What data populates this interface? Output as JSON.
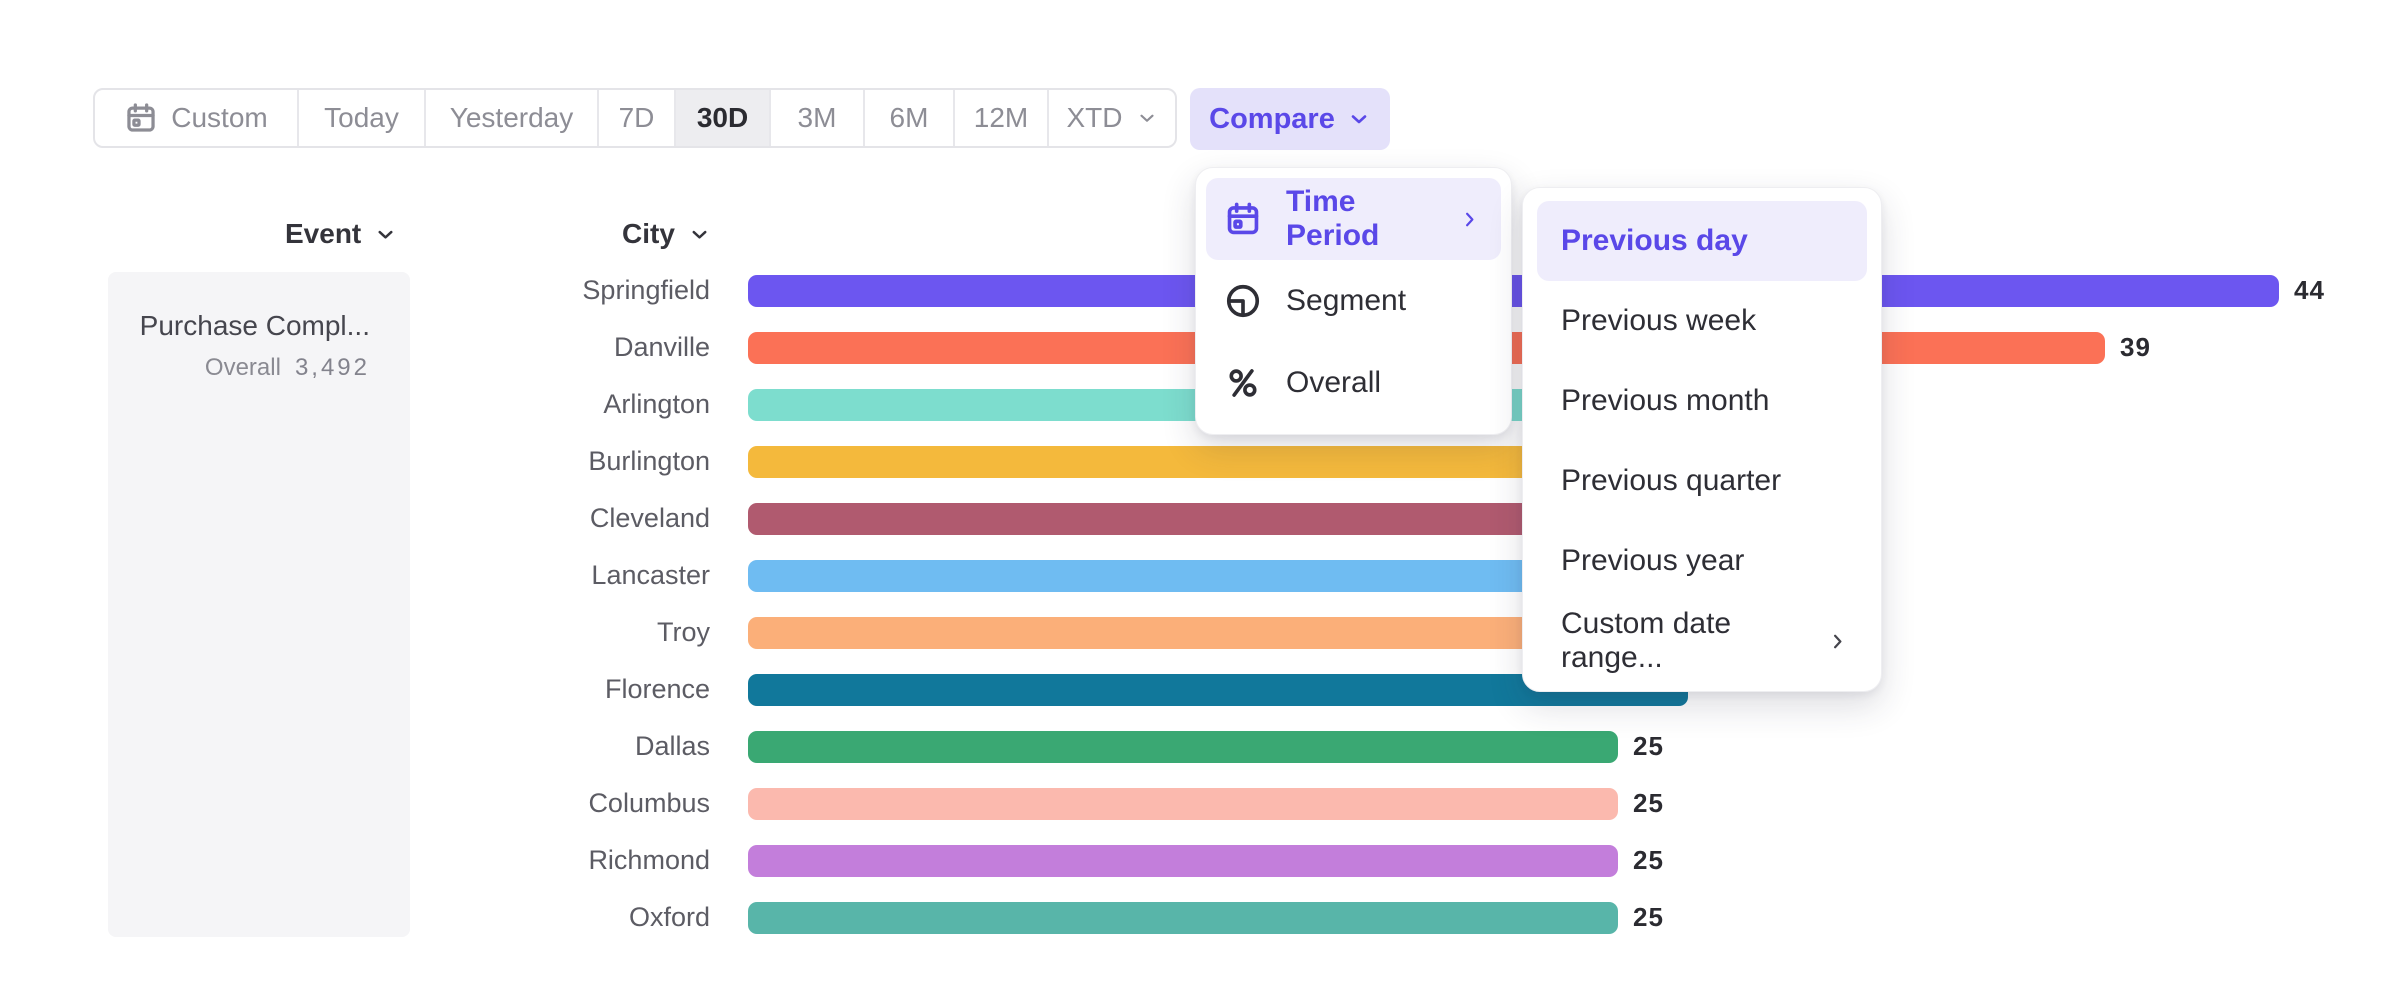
{
  "toolbar": {
    "items": [
      {
        "label": "Custom",
        "icon": "calendar-icon",
        "chevron": false,
        "selected": false
      },
      {
        "label": "Today",
        "icon": null,
        "chevron": false,
        "selected": false
      },
      {
        "label": "Yesterday",
        "icon": null,
        "chevron": false,
        "selected": false
      },
      {
        "label": "7D",
        "icon": null,
        "chevron": false,
        "selected": false
      },
      {
        "label": "30D",
        "icon": null,
        "chevron": false,
        "selected": true
      },
      {
        "label": "3M",
        "icon": null,
        "chevron": false,
        "selected": false
      },
      {
        "label": "6M",
        "icon": null,
        "chevron": false,
        "selected": false
      },
      {
        "label": "12M",
        "icon": null,
        "chevron": false,
        "selected": false
      },
      {
        "label": "XTD",
        "icon": null,
        "chevron": true,
        "selected": false
      }
    ]
  },
  "compare_button": {
    "label": "Compare"
  },
  "column_headers": {
    "event": "Event",
    "city": "City"
  },
  "event_card": {
    "title": "Purchase Compl...",
    "overall_label": "Overall",
    "overall_value": "3,492"
  },
  "chart_data": {
    "type": "bar",
    "orientation": "horizontal",
    "title": "Purchase Completed by City (30D)",
    "categories": [
      "Springfield",
      "Danville",
      "Arlington",
      "Burlington",
      "Cleveland",
      "Lancaster",
      "Troy",
      "Florence",
      "Dallas",
      "Columbus",
      "Richmond",
      "Oxford"
    ],
    "values": [
      44,
      39,
      32,
      31,
      30,
      29,
      28,
      27,
      25,
      25,
      25,
      25
    ],
    "value_labels": [
      "44",
      "39",
      null,
      null,
      null,
      null,
      null,
      null,
      "25",
      "25",
      "25",
      "25"
    ],
    "colors": [
      "#6C56F0",
      "#FB7156",
      "#7DDDCE",
      "#F4B93C",
      "#B05A6F",
      "#6FBCF2",
      "#FBAF79",
      "#11789B",
      "#3AA873",
      "#FBB9AE",
      "#C37EDB",
      "#58B5A9"
    ],
    "xlim": [
      0,
      46
    ],
    "grid": false,
    "legend": "none"
  },
  "compare_menu": {
    "items": [
      {
        "label": "Time Period",
        "icon": "calendar-icon",
        "chevron": true,
        "highlighted": true
      },
      {
        "label": "Segment",
        "icon": "segment-icon",
        "chevron": false,
        "highlighted": false
      },
      {
        "label": "Overall",
        "icon": "percent-icon",
        "chevron": false,
        "highlighted": false
      }
    ]
  },
  "time_period_submenu": {
    "items": [
      {
        "label": "Previous day",
        "chevron": false,
        "highlighted": true
      },
      {
        "label": "Previous week",
        "chevron": false,
        "highlighted": false
      },
      {
        "label": "Previous month",
        "chevron": false,
        "highlighted": false
      },
      {
        "label": "Previous quarter",
        "chevron": false,
        "highlighted": false
      },
      {
        "label": "Previous year",
        "chevron": false,
        "highlighted": false
      },
      {
        "label": "Custom date range...",
        "chevron": true,
        "highlighted": false
      }
    ]
  },
  "colors": {
    "accent_indigo": "#5A48E8",
    "compare_button_bg": "#E4E1FA",
    "menu_highlight_bg": "#EFEDFC",
    "toolbar_text": "#8D8D95",
    "selected_segment_bg": "#EDEDF0",
    "dark_text": "#2B2B31",
    "row_label_text": "#5C5C64",
    "event_card_bg": "#F5F5F7"
  }
}
